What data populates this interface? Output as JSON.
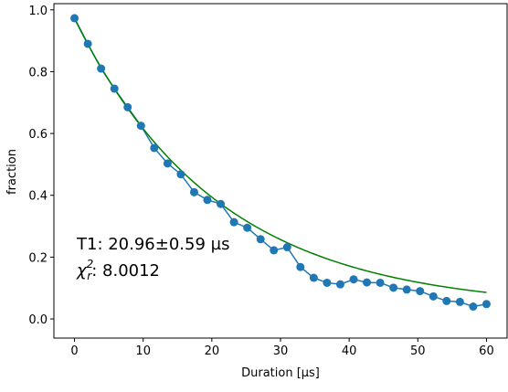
{
  "chart_data": {
    "type": "scatter",
    "xlabel": "Duration [µs]",
    "ylabel": "fraction",
    "xlim": [
      -3.0,
      63.0
    ],
    "ylim": [
      -0.062,
      1.02
    ],
    "xticks": [
      0,
      10,
      20,
      30,
      40,
      50,
      60
    ],
    "yticks": [
      0.0,
      0.2,
      0.4,
      0.6,
      0.8,
      1.0
    ],
    "ytick_labels": [
      "0.0",
      "0.2",
      "0.4",
      "0.6",
      "0.8",
      "1.0"
    ],
    "grid": false,
    "series": [
      {
        "kind": "scatter-line",
        "color": "#1f77b4",
        "x": [
          0,
          1.94,
          3.87,
          5.81,
          7.74,
          9.68,
          11.61,
          13.55,
          15.48,
          17.42,
          19.35,
          21.29,
          23.23,
          25.16,
          27.1,
          29.03,
          30.97,
          32.9,
          34.84,
          36.77,
          38.71,
          40.65,
          42.58,
          44.52,
          46.45,
          48.39,
          50.32,
          52.26,
          54.19,
          56.13,
          58.06,
          60
        ],
        "y": [
          0.973,
          0.89,
          0.81,
          0.745,
          0.685,
          0.625,
          0.553,
          0.503,
          0.468,
          0.41,
          0.385,
          0.372,
          0.313,
          0.295,
          0.258,
          0.222,
          0.232,
          0.168,
          0.133,
          0.117,
          0.112,
          0.128,
          0.118,
          0.117,
          0.101,
          0.095,
          0.09,
          0.073,
          0.058,
          0.055,
          0.04,
          0.048
        ]
      },
      {
        "kind": "fit-line",
        "color": "#008000",
        "model": "exponential-decay",
        "amplitude": 0.94,
        "tau": 20.96,
        "offset": 0.032,
        "x_range": [
          0,
          60
        ]
      }
    ],
    "annotations": [
      {
        "text": "T1: 20.96±0.59 µs"
      },
      {
        "prefix_symbol": "χ",
        "sup": "2",
        "sub": "r",
        "text": ": 8.0012"
      }
    ]
  }
}
